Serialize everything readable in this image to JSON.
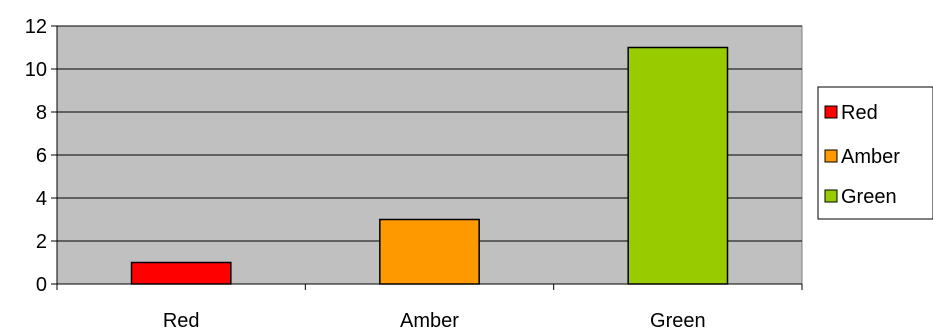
{
  "chart_data": {
    "type": "bar",
    "title": "",
    "xlabel": "",
    "ylabel": "",
    "categories": [
      "Red",
      "Amber",
      "Green"
    ],
    "values": [
      1,
      3,
      11
    ],
    "colors": [
      "#ff0000",
      "#ff9900",
      "#99cc00"
    ],
    "ylim": [
      0,
      12
    ],
    "yticks": [
      0,
      2,
      4,
      6,
      8,
      10,
      12
    ],
    "grid": true,
    "plot_background": "#c0c0c0",
    "legend": {
      "placement": "right",
      "entries": [
        "Red",
        "Amber",
        "Green"
      ]
    }
  }
}
